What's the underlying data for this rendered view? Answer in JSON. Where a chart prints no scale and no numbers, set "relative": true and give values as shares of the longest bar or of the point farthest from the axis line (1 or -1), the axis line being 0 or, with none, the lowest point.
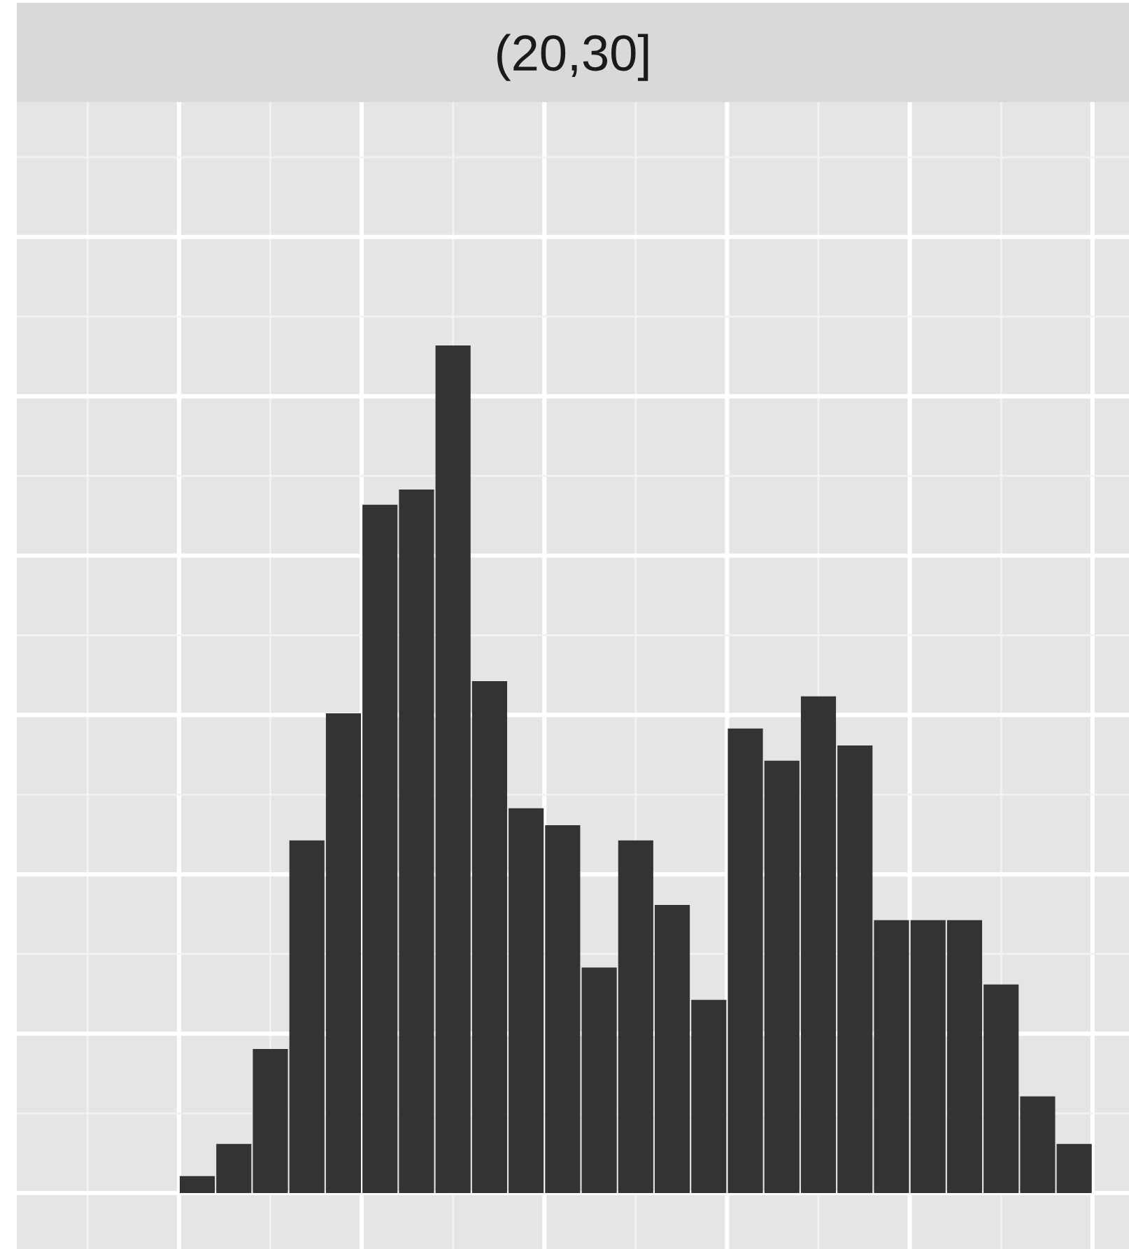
{
  "chart_data": {
    "type": "bar",
    "title": "(20,30]",
    "relative": true,
    "grid": true,
    "color": "#333333",
    "categories": [
      null,
      null,
      null,
      null,
      null,
      null,
      null,
      null,
      null,
      null,
      null,
      null,
      null,
      null,
      null,
      null,
      null,
      null,
      null,
      null,
      null,
      null,
      null,
      null,
      null
    ],
    "values": [
      0.02,
      0.058,
      0.17,
      0.416,
      0.566,
      0.812,
      0.83,
      1,
      0.604,
      0.454,
      0.434,
      0.266,
      0.416,
      0.34,
      0.228,
      0.548,
      0.51,
      0.586,
      0.528,
      0.322,
      0.322,
      0.322,
      0.246,
      0.114,
      0.058
    ]
  }
}
